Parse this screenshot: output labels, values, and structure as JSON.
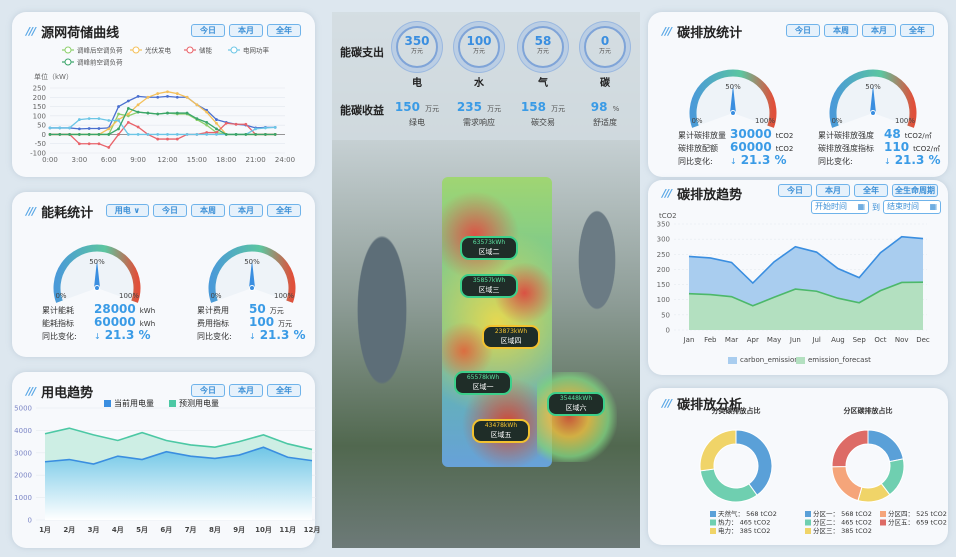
{
  "colors": {
    "accent": "#3a9be6",
    "blue": "#5aa0d8",
    "teal": "#6fcfb0",
    "yellow": "#f0d468",
    "orange": "#f5a57a",
    "red": "#dd6b66"
  },
  "load_panel": {
    "title": "源网荷储曲线",
    "buttons": [
      "今日",
      "本月",
      "全年"
    ],
    "chart_data": {
      "type": "line",
      "ylabel": "单位（kW）",
      "xlim": [
        0,
        24
      ],
      "ylim": [
        -100,
        250
      ],
      "xticks": [
        "0:00",
        "3:00",
        "6:00",
        "9:00",
        "12:00",
        "15:00",
        "18:00",
        "21:00",
        "24:00"
      ],
      "yticks": [
        "250",
        "200",
        "150",
        "100",
        "50",
        "0",
        "-50",
        "-100"
      ],
      "legend": [
        "调峰后空调负荷",
        "光伏发电",
        "储能",
        "电网功率",
        "调峰前空调负荷"
      ],
      "x": [
        0,
        1,
        2,
        3,
        4,
        5,
        6,
        7,
        8,
        9,
        10,
        11,
        12,
        13,
        14,
        15,
        16,
        17,
        18,
        19,
        20,
        21,
        22,
        23
      ],
      "series": [
        {
          "color": "#4a6fcf",
          "values": [
            35,
            35,
            35,
            30,
            32,
            32,
            35,
            150,
            180,
            205,
            200,
            200,
            205,
            200,
            200,
            160,
            130,
            80,
            65,
            55,
            50,
            35,
            38,
            38
          ]
        },
        {
          "name": "调峰后空调负荷",
          "color": "#8ccf6a",
          "values": [
            0,
            0,
            0,
            0,
            0,
            0,
            0,
            110,
            100,
            120,
            115,
            110,
            115,
            110,
            110,
            80,
            50,
            10,
            0,
            0,
            0,
            0,
            0,
            0
          ]
        },
        {
          "name": "光伏发电",
          "color": "#f4c05a",
          "values": [
            0,
            0,
            0,
            0,
            0,
            0,
            30,
            80,
            110,
            160,
            200,
            220,
            230,
            220,
            200,
            160,
            120,
            60,
            0,
            0,
            0,
            0,
            0,
            0
          ]
        },
        {
          "name": "储能",
          "color": "#e9636a",
          "values": [
            0,
            0,
            0,
            -50,
            -50,
            -50,
            -70,
            0,
            65,
            40,
            0,
            -25,
            -25,
            -25,
            0,
            0,
            10,
            10,
            60,
            55,
            55,
            0,
            0,
            0
          ]
        },
        {
          "name": "电网功率",
          "color": "#6cc6e6",
          "values": [
            35,
            35,
            35,
            80,
            85,
            85,
            75,
            75,
            0,
            0,
            0,
            0,
            0,
            0,
            0,
            0,
            0,
            0,
            0,
            0,
            0,
            30,
            35,
            38
          ]
        },
        {
          "name": "调峰前空调负荷",
          "color": "#3aa56a",
          "values": [
            0,
            0,
            0,
            0,
            0,
            0,
            0,
            30,
            140,
            120,
            115,
            110,
            115,
            115,
            115,
            85,
            65,
            30,
            0,
            0,
            0,
            0,
            0,
            0
          ]
        }
      ]
    }
  },
  "energy_panel": {
    "title": "能耗统计",
    "select": "用电",
    "buttons": [
      "今日",
      "本周",
      "本月",
      "全年"
    ],
    "gauges": [
      {
        "min": "0%",
        "mid": "50%",
        "max": "100%",
        "level": 0.5,
        "rows": [
          {
            "label": "累计能耗",
            "value": "28000",
            "unit": "kWh"
          },
          {
            "label": "能耗指标",
            "value": "60000",
            "unit": "kWh"
          },
          {
            "label": "同比变化:",
            "value": "21.3 %",
            "unit": ""
          }
        ]
      },
      {
        "min": "0%",
        "mid": "50%",
        "max": "100%",
        "level": 0.5,
        "rows": [
          {
            "label": "累计费用",
            "value": "50",
            "unit": "万元"
          },
          {
            "label": "费用指标",
            "value": "100",
            "unit": "万元"
          },
          {
            "label": "同比变化:",
            "value": "21.3 %",
            "unit": ""
          }
        ]
      }
    ]
  },
  "power_panel": {
    "title": "用电趋势",
    "buttons": [
      "今日",
      "本月",
      "全年"
    ],
    "chart_data": {
      "type": "area",
      "ylim": [
        0,
        5000
      ],
      "yticks": [
        "5000",
        "4000",
        "3000",
        "2000",
        "1000",
        "0"
      ],
      "categories": [
        "1月",
        "2月",
        "3月",
        "4月",
        "5月",
        "6月",
        "7月",
        "8月",
        "9月",
        "10月",
        "11月",
        "12月"
      ],
      "series": [
        {
          "name": "当前用电量",
          "color": "#3a8ee0",
          "values": [
            2600,
            2700,
            2500,
            2850,
            2700,
            3050,
            2850,
            2750,
            2900,
            3250,
            2800,
            2650
          ]
        },
        {
          "name": "预测用电量",
          "color": "#4cc8a4",
          "values": [
            3850,
            4100,
            3800,
            3550,
            3900,
            3550,
            3350,
            3250,
            3500,
            3800,
            3400,
            3150
          ]
        }
      ]
    }
  },
  "center": {
    "spend_label": "能碳支出",
    "income_label": "能碳收益",
    "spend": [
      {
        "value": "350",
        "unit": "万元",
        "name": "电"
      },
      {
        "value": "100",
        "unit": "万元",
        "name": "水"
      },
      {
        "value": "58",
        "unit": "万元",
        "name": "气"
      },
      {
        "value": "0",
        "unit": "万元",
        "name": "碳"
      }
    ],
    "income": [
      {
        "value": "150",
        "unit": "万元",
        "name": "绿电"
      },
      {
        "value": "235",
        "unit": "万元",
        "name": "需求响应"
      },
      {
        "value": "158",
        "unit": "万元",
        "name": "碳交易"
      },
      {
        "value": "98",
        "unit": "%",
        "name": "舒适度"
      }
    ],
    "zones": [
      {
        "kwh": "63573kWh",
        "name": "区域二"
      },
      {
        "kwh": "35857kWh",
        "name": "区域三"
      },
      {
        "kwh": "23873kWh",
        "name": "区域四"
      },
      {
        "kwh": "65578kWh",
        "name": "区域一"
      },
      {
        "kwh": "35448kWh",
        "name": "区域六"
      },
      {
        "kwh": "43478kWh",
        "name": "区域五"
      }
    ]
  },
  "carbon_stats": {
    "title": "碳排放统计",
    "buttons": [
      "今日",
      "本周",
      "本月",
      "全年"
    ],
    "gauges": [
      {
        "min": "0%",
        "mid": "50%",
        "max": "100%",
        "level": 0.5,
        "rows": [
          {
            "label": "累计碳排放量",
            "value": "30000",
            "unit": "tCO2"
          },
          {
            "label": "碳排放配额",
            "value": "60000",
            "unit": "tCO2"
          },
          {
            "label": "同比变化:",
            "value": "21.3 %",
            "unit": ""
          }
        ]
      },
      {
        "min": "0%",
        "mid": "50%",
        "max": "100%",
        "level": 0.5,
        "rows": [
          {
            "label": "累计碳排放强度",
            "value": "48",
            "unit": "tCO2/㎡"
          },
          {
            "label": "碳排放强度指标",
            "value": "110",
            "unit": "tCO2/㎡"
          },
          {
            "label": "同比变化:",
            "value": "21.3 %",
            "unit": ""
          }
        ]
      }
    ]
  },
  "carbon_trend": {
    "title": "碳排放趋势",
    "buttons": [
      "今日",
      "本月",
      "全年",
      "全生命周期"
    ],
    "start_placeholder": "开始时间",
    "to": "到",
    "end_placeholder": "结束时间",
    "chart_data": {
      "type": "area",
      "ylabel": "tCO2",
      "ylim": [
        0,
        350
      ],
      "yticks": [
        "350",
        "300",
        "250",
        "200",
        "150",
        "100",
        "50",
        "0"
      ],
      "categories": [
        "Jan",
        "Feb",
        "Mar",
        "Apr",
        "May",
        "Jun",
        "Jul",
        "Aug",
        "Sep",
        "Oct",
        "Nov",
        "Dec"
      ],
      "series": [
        {
          "name": "carbon_emission",
          "color": "#3a8ee0",
          "fill": "#a9cdef",
          "values": [
            243,
            238,
            223,
            155,
            225,
            275,
            257,
            203,
            173,
            255,
            308,
            302
          ]
        },
        {
          "name": "emission_forecast",
          "color": "#4cb86a",
          "fill": "#b3e0c0",
          "values": [
            120,
            117,
            110,
            80,
            108,
            135,
            128,
            105,
            90,
            130,
            157,
            158
          ]
        }
      ]
    }
  },
  "carbon_analysis": {
    "title": "碳排放分析",
    "chart_data": [
      {
        "type": "pie",
        "title": "分类碳排放占比",
        "slices": [
          {
            "label": "天然气",
            "value": 568,
            "unit": "tCO2",
            "color": "#5aa0d8"
          },
          {
            "label": "热力",
            "value": 465,
            "unit": "tCO2",
            "color": "#6fcfb0"
          },
          {
            "label": "电力",
            "value": 385,
            "unit": "tCO2",
            "color": "#f0d468"
          }
        ]
      },
      {
        "type": "pie",
        "title": "分区碳排放占比",
        "slices": [
          {
            "label": "分区一",
            "value": 568,
            "unit": "tCO2",
            "color": "#5aa0d8"
          },
          {
            "label": "分区二",
            "value": 465,
            "unit": "tCO2",
            "color": "#6fcfb0"
          },
          {
            "label": "分区三",
            "value": 385,
            "unit": "tCO2",
            "color": "#f0d468"
          },
          {
            "label": "分区四",
            "value": 525,
            "unit": "tCO2",
            "color": "#f5a57a"
          },
          {
            "label": "分区五",
            "value": 659,
            "unit": "tCO2",
            "color": "#dd6b66"
          }
        ]
      }
    ]
  }
}
